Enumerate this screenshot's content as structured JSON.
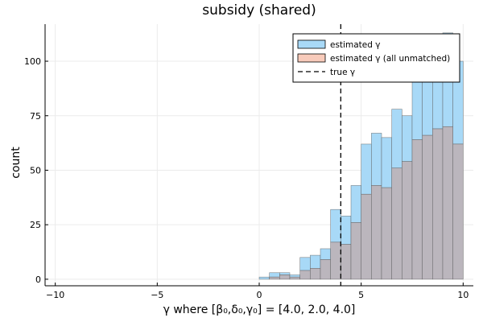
{
  "chart_data": {
    "type": "bar",
    "title": "subsidy (shared)",
    "xlabel": "γ where [β₀,δ₀,γ₀] = [4.0, 2.0, 4.0]",
    "ylabel": "count",
    "xlim": [
      -10.5,
      10.5
    ],
    "ylim": [
      -3,
      117
    ],
    "xticks": [
      -10,
      -5,
      0,
      5,
      10
    ],
    "yticks": [
      0,
      25,
      50,
      75,
      100
    ],
    "grid": true,
    "legend_position": "top-right",
    "bin_width": 0.5,
    "bin_starts": [
      0.0,
      0.5,
      1.0,
      1.5,
      2.0,
      2.5,
      3.0,
      3.5,
      4.0,
      4.5,
      5.0,
      5.5,
      6.0,
      6.5,
      7.0,
      7.5,
      8.0,
      8.5,
      9.0,
      9.5
    ],
    "series": [
      {
        "name": "estimated γ",
        "color": "#a8d9f7",
        "values": [
          1,
          3,
          3,
          2,
          10,
          11,
          14,
          32,
          29,
          43,
          62,
          67,
          65,
          78,
          75,
          102,
          94,
          98,
          113,
          100
        ]
      },
      {
        "name": "estimated γ (all unmatched)",
        "color": "#f8cbbb",
        "values": [
          0,
          1,
          2,
          1,
          4,
          5,
          9,
          17,
          16,
          26,
          39,
          43,
          42,
          51,
          54,
          64,
          66,
          69,
          70,
          62
        ]
      }
    ],
    "overlap_color": "#bbb6bd",
    "vline": {
      "name": "true γ",
      "x": 4.0,
      "style": "dashed"
    }
  }
}
